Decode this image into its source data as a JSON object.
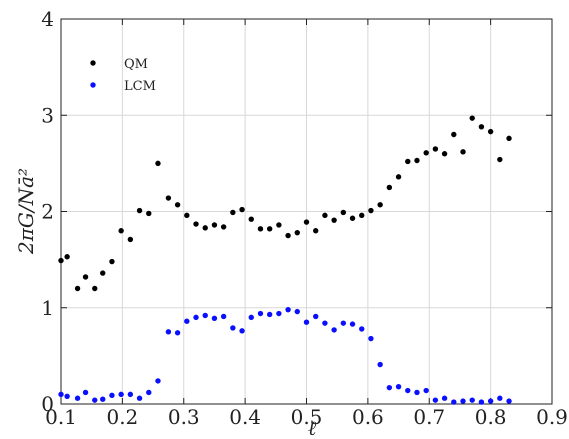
{
  "chart_data": {
    "type": "scatter",
    "xlabel": "ℓ",
    "ylabel": "2πG/Nā²",
    "xlim": [
      0.1,
      0.9
    ],
    "ylim": [
      0,
      4
    ],
    "x_ticks": [
      0.1,
      0.2,
      0.3,
      0.4,
      0.5,
      0.6,
      0.7,
      0.8,
      0.9
    ],
    "x_tick_labels": [
      "0.1",
      "0.2",
      "0.3",
      "0.4",
      "0.5",
      "0.6",
      "0.7",
      "0.8",
      "0.9"
    ],
    "y_ticks": [
      0,
      1,
      2,
      3,
      4
    ],
    "y_tick_labels": [
      "0",
      "1",
      "2",
      "3",
      "4"
    ],
    "grid": true,
    "legend_position": "top-left",
    "series": [
      {
        "name": "QM",
        "color": "#000000",
        "points": [
          [
            0.1,
            1.49
          ],
          [
            0.11,
            1.53
          ],
          [
            0.127,
            1.2
          ],
          [
            0.14,
            1.32
          ],
          [
            0.155,
            1.2
          ],
          [
            0.168,
            1.36
          ],
          [
            0.183,
            1.48
          ],
          [
            0.198,
            1.8
          ],
          [
            0.213,
            1.71
          ],
          [
            0.228,
            2.01
          ],
          [
            0.243,
            1.98
          ],
          [
            0.258,
            2.5
          ],
          [
            0.275,
            2.14
          ],
          [
            0.29,
            2.07
          ],
          [
            0.305,
            1.96
          ],
          [
            0.32,
            1.87
          ],
          [
            0.335,
            1.83
          ],
          [
            0.35,
            1.86
          ],
          [
            0.365,
            1.84
          ],
          [
            0.38,
            1.99
          ],
          [
            0.395,
            2.02
          ],
          [
            0.41,
            1.92
          ],
          [
            0.425,
            1.82
          ],
          [
            0.44,
            1.82
          ],
          [
            0.455,
            1.86
          ],
          [
            0.47,
            1.75
          ],
          [
            0.485,
            1.78
          ],
          [
            0.5,
            1.89
          ],
          [
            0.515,
            1.8
          ],
          [
            0.53,
            1.96
          ],
          [
            0.545,
            1.91
          ],
          [
            0.56,
            1.99
          ],
          [
            0.575,
            1.93
          ],
          [
            0.59,
            1.96
          ],
          [
            0.605,
            2.01
          ],
          [
            0.62,
            2.07
          ],
          [
            0.635,
            2.25
          ],
          [
            0.65,
            2.36
          ],
          [
            0.665,
            2.52
          ],
          [
            0.68,
            2.53
          ],
          [
            0.695,
            2.61
          ],
          [
            0.71,
            2.65
          ],
          [
            0.725,
            2.6
          ],
          [
            0.74,
            2.8
          ],
          [
            0.755,
            2.62
          ],
          [
            0.77,
            2.97
          ],
          [
            0.785,
            2.88
          ],
          [
            0.8,
            2.83
          ],
          [
            0.815,
            2.54
          ],
          [
            0.83,
            2.76
          ]
        ]
      },
      {
        "name": "LCM",
        "color": "#0a10ff",
        "points": [
          [
            0.1,
            0.1
          ],
          [
            0.11,
            0.08
          ],
          [
            0.127,
            0.06
          ],
          [
            0.14,
            0.12
          ],
          [
            0.155,
            0.04
          ],
          [
            0.168,
            0.05
          ],
          [
            0.183,
            0.09
          ],
          [
            0.198,
            0.1
          ],
          [
            0.213,
            0.1
          ],
          [
            0.228,
            0.06
          ],
          [
            0.243,
            0.12
          ],
          [
            0.258,
            0.24
          ],
          [
            0.275,
            0.75
          ],
          [
            0.29,
            0.74
          ],
          [
            0.305,
            0.86
          ],
          [
            0.32,
            0.9
          ],
          [
            0.335,
            0.92
          ],
          [
            0.35,
            0.89
          ],
          [
            0.365,
            0.91
          ],
          [
            0.38,
            0.79
          ],
          [
            0.395,
            0.76
          ],
          [
            0.41,
            0.9
          ],
          [
            0.425,
            0.94
          ],
          [
            0.44,
            0.93
          ],
          [
            0.455,
            0.94
          ],
          [
            0.47,
            0.98
          ],
          [
            0.485,
            0.96
          ],
          [
            0.5,
            0.85
          ],
          [
            0.515,
            0.91
          ],
          [
            0.53,
            0.84
          ],
          [
            0.545,
            0.77
          ],
          [
            0.56,
            0.84
          ],
          [
            0.575,
            0.83
          ],
          [
            0.59,
            0.78
          ],
          [
            0.605,
            0.68
          ],
          [
            0.62,
            0.41
          ],
          [
            0.635,
            0.17
          ],
          [
            0.65,
            0.18
          ],
          [
            0.665,
            0.14
          ],
          [
            0.68,
            0.12
          ],
          [
            0.695,
            0.14
          ],
          [
            0.71,
            0.04
          ],
          [
            0.725,
            0.06
          ],
          [
            0.74,
            0.02
          ],
          [
            0.755,
            0.03
          ],
          [
            0.77,
            0.04
          ],
          [
            0.785,
            0.02
          ],
          [
            0.8,
            0.03
          ],
          [
            0.815,
            0.06
          ],
          [
            0.83,
            0.03
          ]
        ]
      }
    ]
  }
}
